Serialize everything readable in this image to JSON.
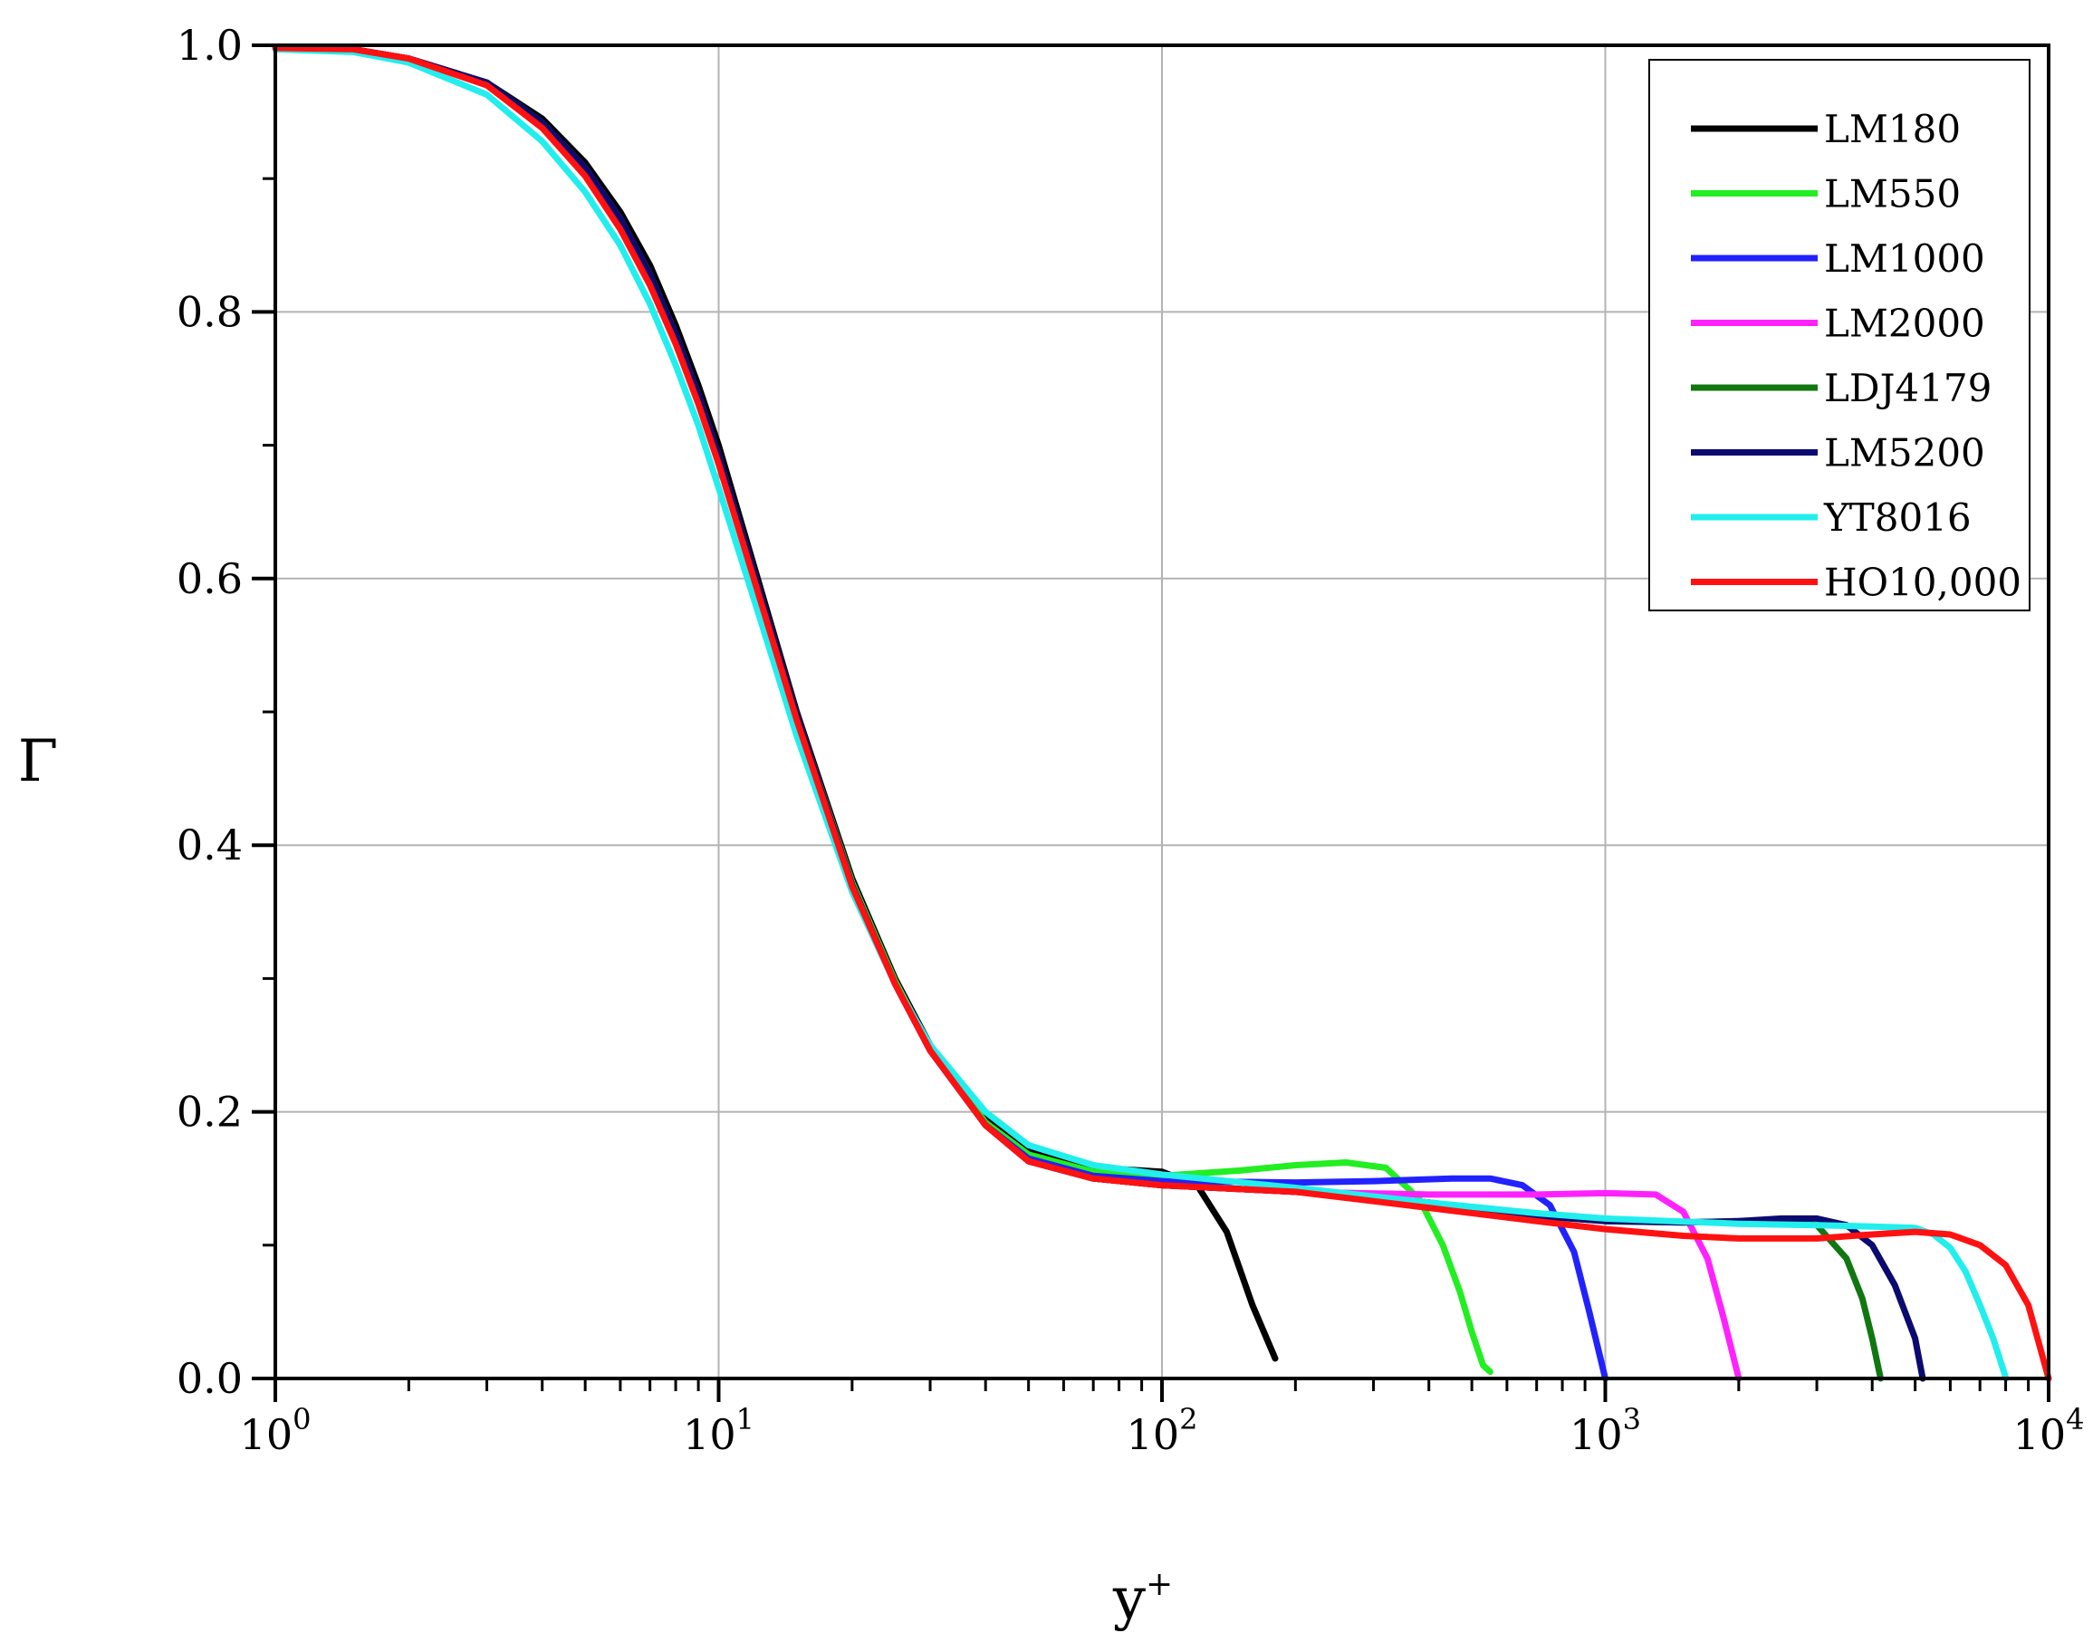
{
  "chart_data": {
    "type": "line",
    "title": "",
    "xlabel": "y",
    "xlabel_sup": "+",
    "ylabel": "Γ",
    "xscale": "log",
    "xlim": [
      1,
      10000
    ],
    "ylim": [
      0,
      1
    ],
    "grid": true,
    "legend_position": "top-right",
    "x_ticks": [
      1,
      10,
      100,
      1000,
      10000
    ],
    "x_tick_labels": [
      {
        "base": "10",
        "exp": "0"
      },
      {
        "base": "10",
        "exp": "1"
      },
      {
        "base": "10",
        "exp": "2"
      },
      {
        "base": "10",
        "exp": "3"
      },
      {
        "base": "10",
        "exp": "4"
      }
    ],
    "y_ticks": [
      0.0,
      0.2,
      0.4,
      0.6,
      0.8,
      1.0
    ],
    "y_tick_labels": [
      "0.0",
      "0.2",
      "0.4",
      "0.6",
      "0.8",
      "1.0"
    ],
    "series": [
      {
        "name": "LM180",
        "color": "#000000",
        "x": [
          1,
          1.5,
          2,
          3,
          4,
          5,
          6,
          7,
          8,
          9,
          10,
          12,
          15,
          20,
          25,
          30,
          40,
          50,
          60,
          80,
          100,
          120,
          140,
          160,
          180
        ],
        "y": [
          0.998,
          0.997,
          0.99,
          0.972,
          0.945,
          0.912,
          0.875,
          0.835,
          0.79,
          0.745,
          0.7,
          0.61,
          0.5,
          0.375,
          0.3,
          0.25,
          0.195,
          0.172,
          0.163,
          0.157,
          0.155,
          0.145,
          0.11,
          0.055,
          0.015
        ]
      },
      {
        "name": "LM550",
        "color": "#22ee22",
        "x": [
          1,
          1.5,
          2,
          3,
          4,
          5,
          6,
          7,
          8,
          9,
          10,
          12,
          15,
          20,
          25,
          30,
          40,
          50,
          70,
          100,
          150,
          200,
          260,
          320,
          380,
          430,
          470,
          500,
          530,
          550
        ],
        "y": [
          0.998,
          0.997,
          0.99,
          0.972,
          0.942,
          0.908,
          0.87,
          0.828,
          0.783,
          0.738,
          0.692,
          0.605,
          0.497,
          0.372,
          0.298,
          0.248,
          0.192,
          0.168,
          0.155,
          0.152,
          0.156,
          0.16,
          0.162,
          0.158,
          0.135,
          0.1,
          0.065,
          0.035,
          0.01,
          0.005
        ]
      },
      {
        "name": "LM1000",
        "color": "#2222ff",
        "x": [
          1,
          1.5,
          2,
          3,
          4,
          5,
          6,
          7,
          8,
          9,
          10,
          12,
          15,
          20,
          25,
          30,
          40,
          50,
          70,
          100,
          200,
          300,
          450,
          550,
          650,
          750,
          850,
          920,
          1000
        ],
        "y": [
          0.998,
          0.997,
          0.99,
          0.972,
          0.942,
          0.908,
          0.87,
          0.828,
          0.783,
          0.738,
          0.692,
          0.605,
          0.497,
          0.37,
          0.296,
          0.246,
          0.19,
          0.165,
          0.152,
          0.148,
          0.147,
          0.148,
          0.15,
          0.15,
          0.145,
          0.13,
          0.095,
          0.05,
          0.0
        ]
      },
      {
        "name": "LM2000",
        "color": "#ff22ff",
        "x": [
          1,
          1.5,
          2,
          3,
          4,
          5,
          6,
          7,
          8,
          9,
          10,
          12,
          15,
          20,
          25,
          30,
          40,
          50,
          70,
          100,
          200,
          400,
          700,
          1000,
          1300,
          1500,
          1700,
          1850,
          2000
        ],
        "y": [
          0.998,
          0.997,
          0.99,
          0.972,
          0.942,
          0.908,
          0.87,
          0.828,
          0.783,
          0.738,
          0.692,
          0.605,
          0.497,
          0.37,
          0.296,
          0.246,
          0.19,
          0.163,
          0.15,
          0.145,
          0.14,
          0.138,
          0.138,
          0.139,
          0.138,
          0.125,
          0.09,
          0.045,
          0.0
        ]
      },
      {
        "name": "LDJ4179",
        "color": "#117711",
        "x": [
          1,
          1.5,
          2,
          3,
          4,
          5,
          6,
          7,
          8,
          9,
          10,
          12,
          15,
          20,
          25,
          30,
          40,
          50,
          70,
          100,
          200,
          400,
          700,
          1000,
          1500,
          2000,
          2500,
          3000,
          3500,
          3800,
          4000,
          4179
        ],
        "y": [
          0.998,
          0.997,
          0.99,
          0.972,
          0.942,
          0.908,
          0.87,
          0.828,
          0.783,
          0.738,
          0.692,
          0.605,
          0.497,
          0.37,
          0.296,
          0.246,
          0.19,
          0.163,
          0.15,
          0.145,
          0.14,
          0.132,
          0.122,
          0.118,
          0.117,
          0.118,
          0.118,
          0.115,
          0.09,
          0.06,
          0.03,
          0.0
        ]
      },
      {
        "name": "LM5200",
        "color": "#0a0a70",
        "x": [
          1,
          1.5,
          2,
          3,
          4,
          5,
          6,
          7,
          8,
          9,
          10,
          12,
          15,
          20,
          25,
          30,
          40,
          50,
          70,
          100,
          200,
          400,
          700,
          1000,
          1500,
          2000,
          2500,
          3000,
          3500,
          4000,
          4500,
          5000,
          5200
        ],
        "y": [
          0.998,
          0.997,
          0.99,
          0.972,
          0.942,
          0.908,
          0.87,
          0.828,
          0.783,
          0.738,
          0.692,
          0.605,
          0.497,
          0.37,
          0.296,
          0.246,
          0.19,
          0.163,
          0.15,
          0.145,
          0.14,
          0.132,
          0.122,
          0.118,
          0.117,
          0.118,
          0.12,
          0.12,
          0.115,
          0.1,
          0.07,
          0.03,
          0.0
        ]
      },
      {
        "name": "YT8016",
        "color": "#22eeee",
        "x": [
          1,
          1.5,
          2,
          3,
          4,
          5,
          6,
          7,
          8,
          9,
          10,
          12,
          15,
          20,
          25,
          30,
          40,
          50,
          70,
          100,
          200,
          400,
          700,
          1000,
          2000,
          3000,
          4000,
          5000,
          5500,
          6000,
          6500,
          7000,
          7500,
          8016
        ],
        "y": [
          0.997,
          0.995,
          0.987,
          0.963,
          0.928,
          0.89,
          0.85,
          0.806,
          0.76,
          0.715,
          0.668,
          0.585,
          0.482,
          0.365,
          0.296,
          0.25,
          0.2,
          0.175,
          0.16,
          0.153,
          0.143,
          0.132,
          0.124,
          0.12,
          0.116,
          0.115,
          0.114,
          0.113,
          0.108,
          0.098,
          0.08,
          0.055,
          0.03,
          0.0
        ]
      },
      {
        "name": "HO10,000",
        "color": "#ff1111",
        "x": [
          1,
          1.5,
          2,
          3,
          4,
          5,
          6,
          7,
          8,
          9,
          10,
          12,
          15,
          20,
          25,
          30,
          40,
          50,
          70,
          100,
          200,
          400,
          700,
          1000,
          1500,
          2000,
          3000,
          4000,
          5000,
          6000,
          7000,
          8000,
          9000,
          10000
        ],
        "y": [
          0.998,
          0.997,
          0.99,
          0.97,
          0.938,
          0.902,
          0.862,
          0.82,
          0.776,
          0.731,
          0.686,
          0.6,
          0.494,
          0.369,
          0.296,
          0.246,
          0.19,
          0.163,
          0.15,
          0.145,
          0.14,
          0.128,
          0.118,
          0.112,
          0.107,
          0.105,
          0.105,
          0.108,
          0.11,
          0.108,
          0.1,
          0.085,
          0.055,
          0.0
        ]
      }
    ]
  }
}
